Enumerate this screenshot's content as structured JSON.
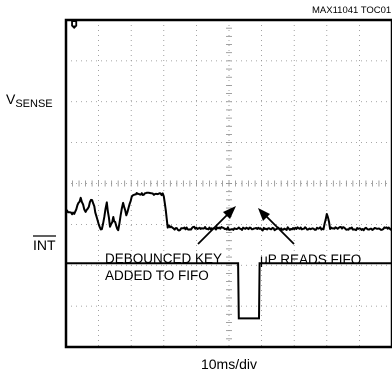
{
  "chart_data": {
    "type": "line",
    "figure_id": "MAX11041 TOC01",
    "xlabel": "10ms/div",
    "grid": true,
    "grid_divisions": {
      "x": 10,
      "y": 8
    },
    "channels": [
      {
        "label_main": "V",
        "label_sub": "SENSE",
        "name": "VSENSE"
      },
      {
        "label_main": "INT",
        "overbar": true,
        "name": "INT"
      }
    ],
    "annotations": [
      {
        "id": "debounced",
        "lines": [
          "DEBOUNCED KEY",
          "ADDED TO FIFO"
        ]
      },
      {
        "id": "up_reads",
        "text": "μP READS FIFO"
      }
    ],
    "vsense_trace": {
      "x": [
        0.0,
        0.25,
        0.45,
        0.6,
        0.8,
        1.0,
        1.1,
        1.25,
        1.35,
        1.45,
        1.6,
        1.75,
        1.85,
        2.05,
        2.2,
        2.45,
        2.8,
        3.0,
        3.12,
        3.4,
        4.0,
        5.0,
        6.0,
        7.0,
        7.9,
        8.0,
        8.1,
        9.0,
        10.0
      ],
      "y": [
        3.35,
        3.25,
        3.65,
        3.3,
        3.62,
        3.0,
        2.85,
        3.55,
        2.95,
        3.15,
        2.85,
        3.55,
        3.25,
        3.72,
        3.75,
        3.74,
        3.76,
        3.72,
        2.95,
        2.88,
        2.92,
        2.9,
        2.88,
        2.9,
        2.9,
        3.28,
        2.92,
        2.88,
        2.9
      ]
    },
    "int_trace": {
      "x": [
        0.0,
        5.28,
        5.3,
        5.92,
        5.94,
        10.0
      ],
      "y": [
        2.05,
        2.05,
        0.7,
        0.7,
        2.05,
        2.05
      ]
    },
    "marker_x": 0.25
  }
}
